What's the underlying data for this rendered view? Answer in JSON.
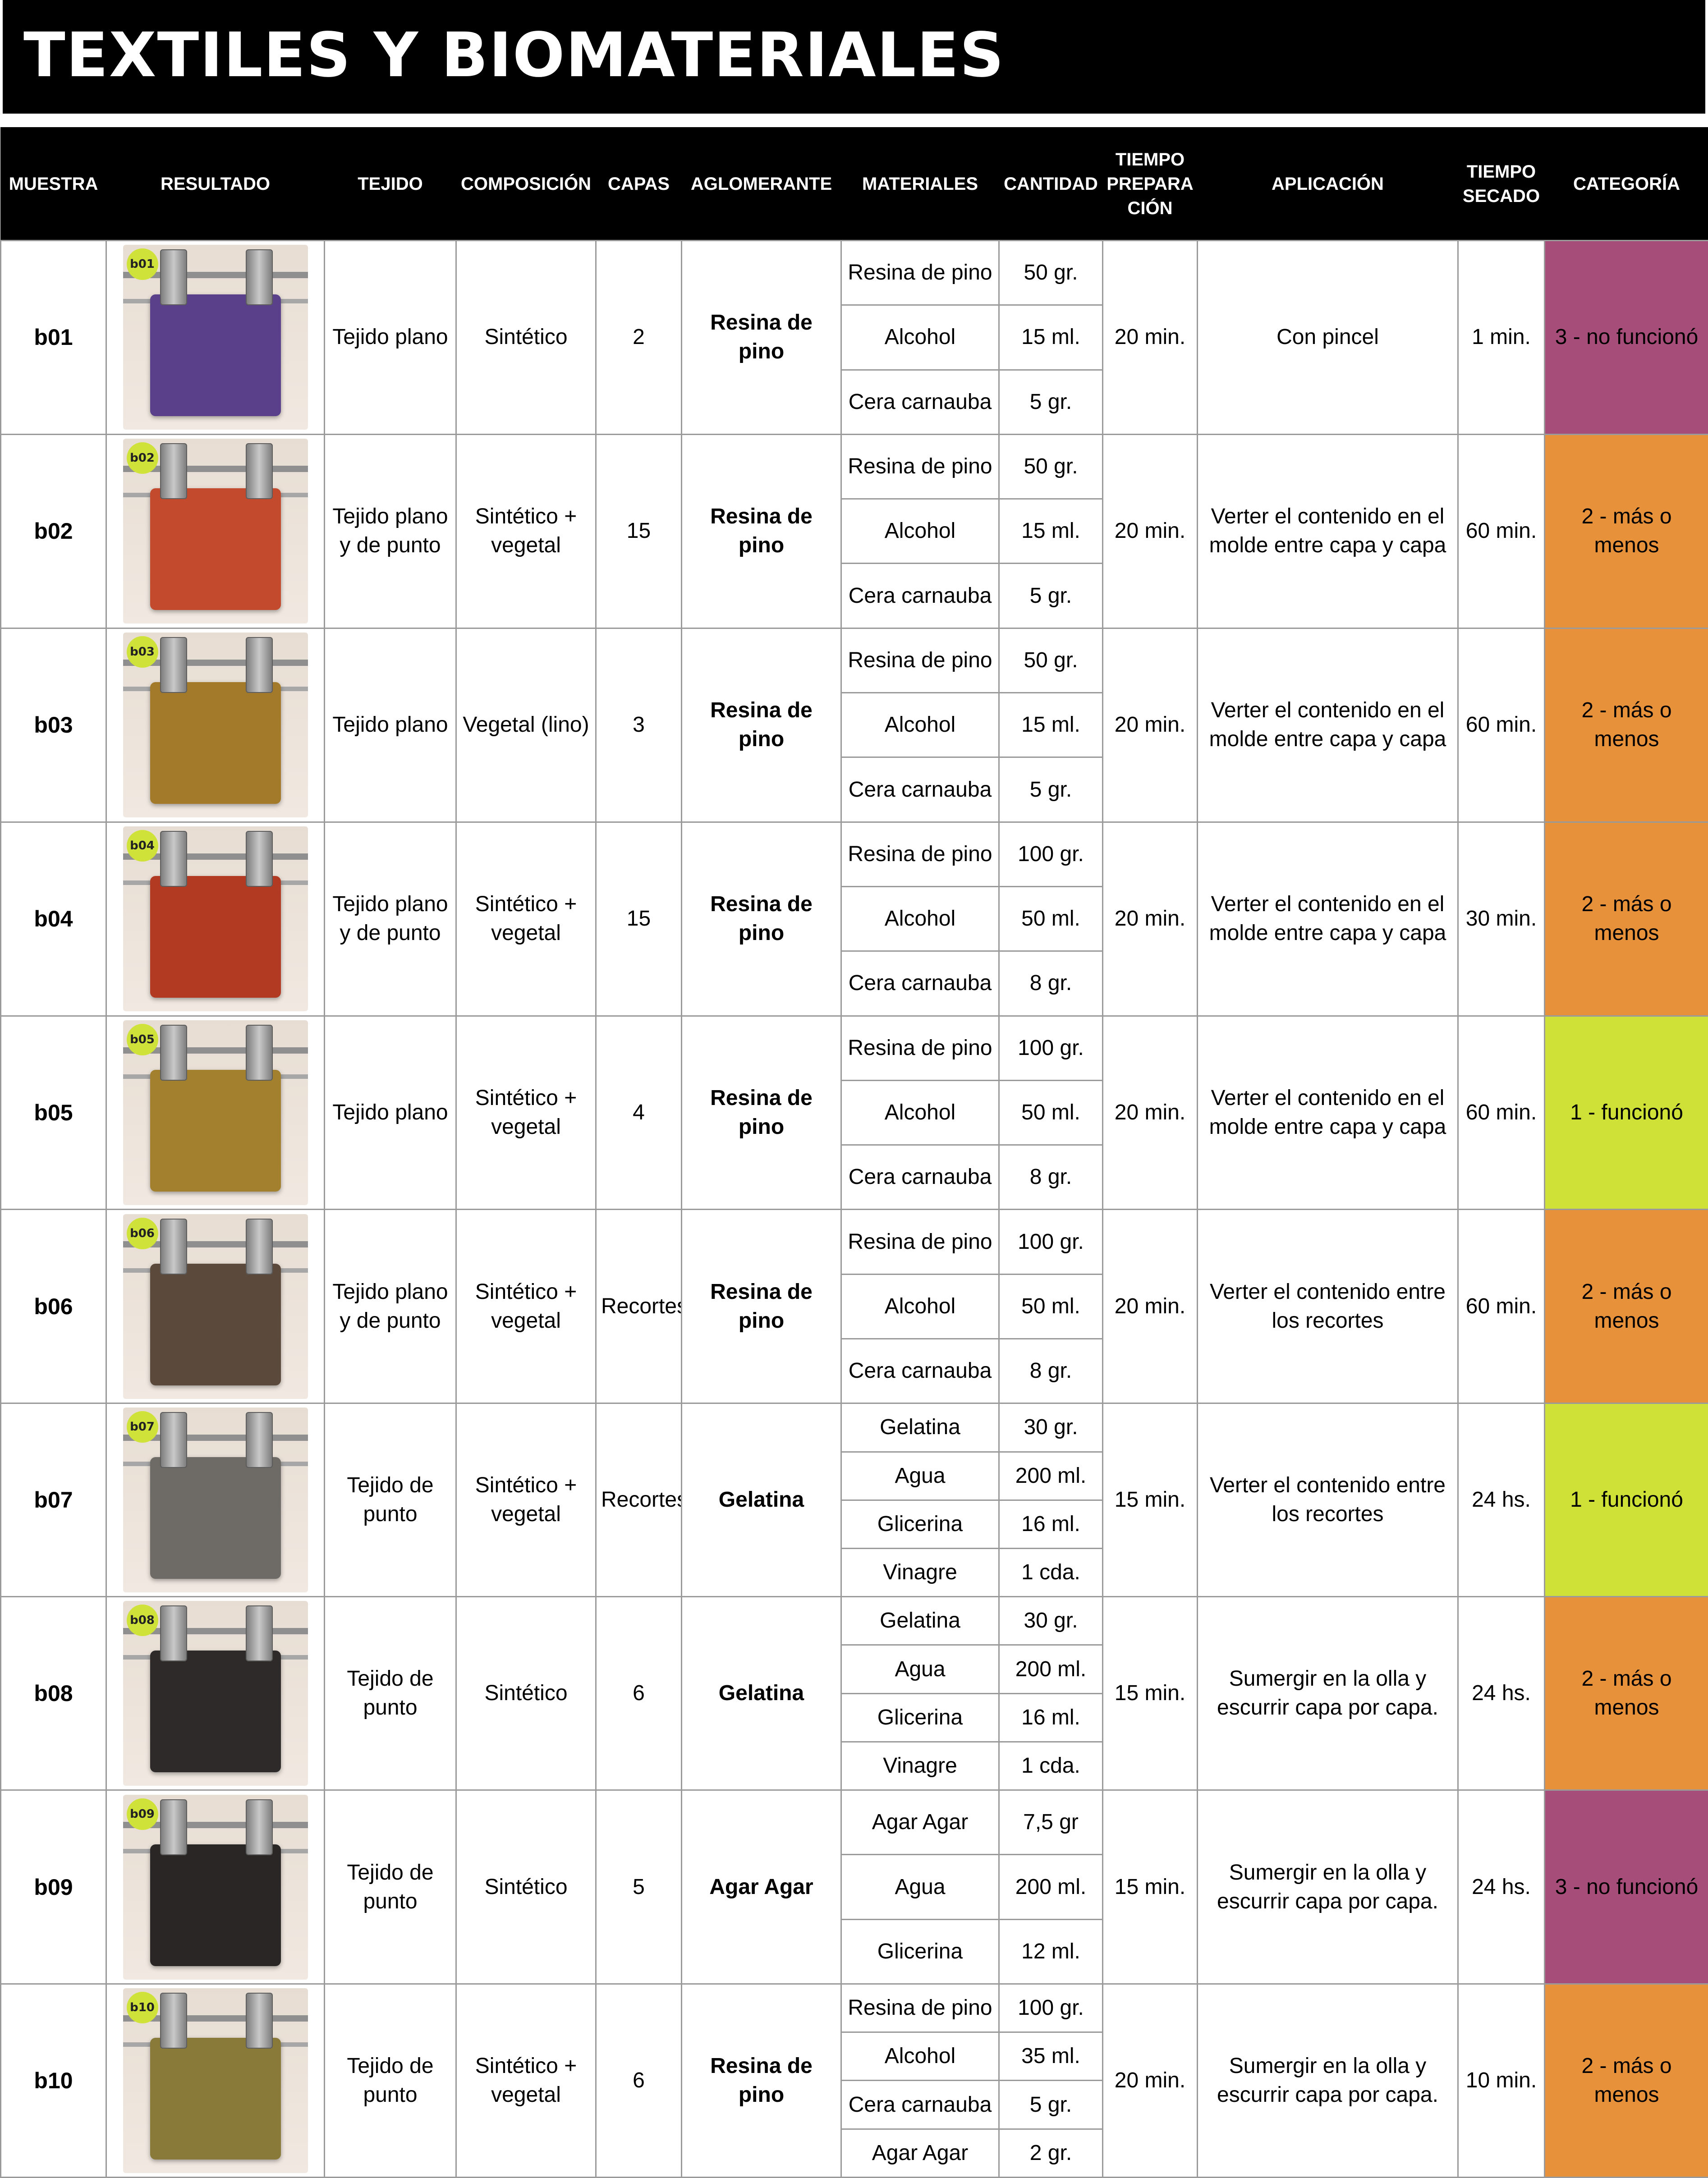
{
  "title": "TEXTILES Y BIOMATERIALES",
  "headers": {
    "muestra": "MUESTRA",
    "resultado": "RESULTADO",
    "tejido": "TEJIDO",
    "composicion": "COMPOSICIÓN",
    "capas": "CAPAS",
    "aglomerante": "AGLOMERANTE",
    "materiales": "MATERIALES",
    "cantidad": "CANTIDAD",
    "tiempo_preparacion": "TIEMPO PREPARA CIÓN",
    "aplicacion": "APLICACIÓN",
    "tiempo_secado": "TIEMPO SECADO",
    "categoria": "CATEGORÍA"
  },
  "colors": {
    "category_1": "#cfe136",
    "category_2": "#e8913b",
    "category_3": "#a64e79"
  },
  "samples": [
    {
      "id": "b01",
      "photo_icon": "textile-sample-photo",
      "cloth_color": "#5a3f8a",
      "tejido": "Tejido plano",
      "composicion": "Sintético",
      "capas": "2",
      "aglomerante": "Resina de pino",
      "materials": [
        {
          "name": "Resina de pino",
          "qty": "50 gr."
        },
        {
          "name": "Alcohol",
          "qty": "15 ml."
        },
        {
          "name": "Cera carnauba",
          "qty": "5 gr."
        }
      ],
      "tiempo_preparacion": "20 min.",
      "aplicacion": "Con pincel",
      "tiempo_secado": "1 min.",
      "categoria": "3 - no funcionó",
      "category_level": 3
    },
    {
      "id": "b02",
      "photo_icon": "textile-sample-photo",
      "cloth_color": "#c34a2c",
      "tejido": "Tejido plano y de punto",
      "composicion": "Sintético + vegetal",
      "capas": "15",
      "aglomerante": "Resina de pino",
      "materials": [
        {
          "name": "Resina de pino",
          "qty": "50 gr."
        },
        {
          "name": "Alcohol",
          "qty": "15 ml."
        },
        {
          "name": "Cera carnauba",
          "qty": "5 gr."
        }
      ],
      "tiempo_preparacion": "20 min.",
      "aplicacion": "Verter el contenido en el molde entre capa y capa",
      "tiempo_secado": "60 min.",
      "categoria": "2 - más o menos",
      "category_level": 2
    },
    {
      "id": "b03",
      "photo_icon": "textile-sample-photo",
      "cloth_color": "#a37a2a",
      "tejido": "Tejido plano",
      "composicion": "Vegetal (lino)",
      "capas": "3",
      "aglomerante": "Resina de pino",
      "materials": [
        {
          "name": "Resina de pino",
          "qty": "50 gr."
        },
        {
          "name": "Alcohol",
          "qty": "15 ml."
        },
        {
          "name": "Cera carnauba",
          "qty": "5 gr."
        }
      ],
      "tiempo_preparacion": "20 min.",
      "aplicacion": "Verter el contenido en el molde entre capa y capa",
      "tiempo_secado": "60 min.",
      "categoria": "2 - más o menos",
      "category_level": 2
    },
    {
      "id": "b04",
      "photo_icon": "textile-sample-photo",
      "cloth_color": "#b23a22",
      "tejido": "Tejido plano y de punto",
      "composicion": "Sintético + vegetal",
      "capas": "15",
      "aglomerante": "Resina de pino",
      "materials": [
        {
          "name": "Resina de pino",
          "qty": "100 gr."
        },
        {
          "name": "Alcohol",
          "qty": "50 ml."
        },
        {
          "name": "Cera carnauba",
          "qty": "8 gr."
        }
      ],
      "tiempo_preparacion": "20 min.",
      "aplicacion": "Verter el contenido en el molde entre capa y capa",
      "tiempo_secado": "30 min.",
      "categoria": "2 - más o menos",
      "category_level": 2
    },
    {
      "id": "b05",
      "photo_icon": "textile-sample-photo",
      "cloth_color": "#a2802e",
      "tejido": "Tejido plano",
      "composicion": "Sintético + vegetal",
      "capas": "4",
      "aglomerante": "Resina de pino",
      "materials": [
        {
          "name": "Resina de pino",
          "qty": "100 gr."
        },
        {
          "name": "Alcohol",
          "qty": "50 ml."
        },
        {
          "name": "Cera carnauba",
          "qty": "8 gr."
        }
      ],
      "tiempo_preparacion": "20 min.",
      "aplicacion": "Verter el contenido en el molde entre capa y capa",
      "tiempo_secado": "60 min.",
      "categoria": "1 - funcionó",
      "category_level": 1
    },
    {
      "id": "b06",
      "photo_icon": "textile-sample-photo",
      "cloth_color": "#5b4a3c",
      "tejido": "Tejido plano y de punto",
      "composicion": "Sintético + vegetal",
      "capas": "Recortes",
      "aglomerante": "Resina de pino",
      "materials": [
        {
          "name": "Resina de pino",
          "qty": "100 gr."
        },
        {
          "name": "Alcohol",
          "qty": "50 ml."
        },
        {
          "name": "Cera carnauba",
          "qty": "8 gr."
        }
      ],
      "tiempo_preparacion": "20 min.",
      "aplicacion": "Verter el contenido entre los recortes",
      "tiempo_secado": "60 min.",
      "categoria": "2 - más o menos",
      "category_level": 2
    },
    {
      "id": "b07",
      "photo_icon": "textile-sample-photo",
      "cloth_color": "#6e6a66",
      "tejido": "Tejido de punto",
      "composicion": "Sintético + vegetal",
      "capas": "Recortes",
      "aglomerante": "Gelatina",
      "materials": [
        {
          "name": "Gelatina",
          "qty": "30 gr."
        },
        {
          "name": "Agua",
          "qty": "200 ml."
        },
        {
          "name": "Glicerina",
          "qty": "16 ml."
        },
        {
          "name": "Vinagre",
          "qty": "1 cda."
        }
      ],
      "tiempo_preparacion": "15 min.",
      "aplicacion": "Verter el contenido entre los recortes",
      "tiempo_secado": "24 hs.",
      "categoria": "1 - funcionó",
      "category_level": 1
    },
    {
      "id": "b08",
      "photo_icon": "textile-sample-photo",
      "cloth_color": "#2e2a2a",
      "tejido": "Tejido de punto",
      "composicion": "Sintético",
      "capas": "6",
      "aglomerante": "Gelatina",
      "materials": [
        {
          "name": "Gelatina",
          "qty": "30 gr."
        },
        {
          "name": "Agua",
          "qty": "200 ml."
        },
        {
          "name": "Glicerina",
          "qty": "16 ml."
        },
        {
          "name": "Vinagre",
          "qty": "1 cda."
        }
      ],
      "tiempo_preparacion": "15 min.",
      "aplicacion": "Sumergir en la olla y escurrir capa por capa.",
      "tiempo_secado": "24 hs.",
      "categoria": "2 - más o menos",
      "category_level": 2
    },
    {
      "id": "b09",
      "photo_icon": "textile-sample-photo",
      "cloth_color": "#2a2626",
      "tejido": "Tejido de punto",
      "composicion": "Sintético",
      "capas": "5",
      "aglomerante": "Agar Agar",
      "materials": [
        {
          "name": "Agar Agar",
          "qty": "7,5 gr"
        },
        {
          "name": "Agua",
          "qty": "200 ml."
        },
        {
          "name": "Glicerina",
          "qty": "12 ml."
        }
      ],
      "tiempo_preparacion": "15 min.",
      "aplicacion": "Sumergir en la olla y escurrir capa por capa.",
      "tiempo_secado": "24 hs.",
      "categoria": "3 - no funcionó",
      "category_level": 3
    },
    {
      "id": "b10",
      "photo_icon": "textile-sample-photo",
      "cloth_color": "#8a7a3a",
      "tejido": "Tejido de punto",
      "composicion": "Sintético + vegetal",
      "capas": "6",
      "aglomerante": "Resina de pino",
      "materials": [
        {
          "name": "Resina de pino",
          "qty": "100 gr."
        },
        {
          "name": "Alcohol",
          "qty": "35 ml."
        },
        {
          "name": "Cera carnauba",
          "qty": "5 gr."
        },
        {
          "name": "Agar Agar",
          "qty": "2 gr."
        }
      ],
      "tiempo_preparacion": "20 min.",
      "aplicacion": "Sumergir en la olla y escurrir capa por capa.",
      "tiempo_secado": "10 min.",
      "categoria": "2 - más o menos",
      "category_level": 2
    }
  ]
}
